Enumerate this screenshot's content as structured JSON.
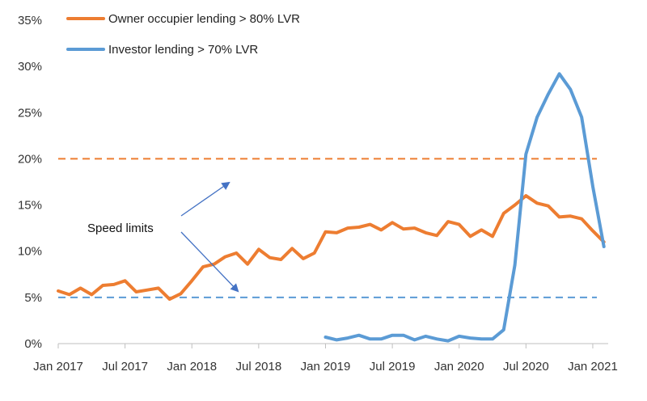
{
  "chart_data": {
    "type": "line",
    "ylim": [
      0,
      35
    ],
    "y_ticks": [
      "0%",
      "5%",
      "10%",
      "15%",
      "20%",
      "25%",
      "30%",
      "35%"
    ],
    "y_tick_values": [
      0,
      5,
      10,
      15,
      20,
      25,
      30,
      35
    ],
    "x_ticks": [
      "Jan 2017",
      "Jul 2017",
      "Jan 2018",
      "Jul 2018",
      "Jan 2019",
      "Jul 2019",
      "Jan 2020",
      "Jul 2020",
      "Jan 2021"
    ],
    "x_tick_values": [
      "2017-01",
      "2017-07",
      "2018-01",
      "2018-07",
      "2019-01",
      "2019-07",
      "2020-01",
      "2020-07",
      "2021-01"
    ],
    "xlim": [
      "2017-01",
      "2021-02"
    ],
    "grid": false,
    "legend_position": "top-left",
    "series": [
      {
        "name": "Owner occupier lending > 80% LVR",
        "color": "#ED7D31",
        "x": [
          "2017-01",
          "2017-02",
          "2017-03",
          "2017-04",
          "2017-05",
          "2017-06",
          "2017-07",
          "2017-08",
          "2017-09",
          "2017-10",
          "2017-11",
          "2017-12",
          "2018-01",
          "2018-02",
          "2018-03",
          "2018-04",
          "2018-05",
          "2018-06",
          "2018-07",
          "2018-08",
          "2018-09",
          "2018-10",
          "2018-11",
          "2018-12",
          "2019-01",
          "2019-02",
          "2019-03",
          "2019-04",
          "2019-05",
          "2019-06",
          "2019-07",
          "2019-08",
          "2019-09",
          "2019-10",
          "2019-11",
          "2019-12",
          "2020-01",
          "2020-02",
          "2020-03",
          "2020-04",
          "2020-05",
          "2020-06",
          "2020-07",
          "2020-08",
          "2020-09",
          "2020-10",
          "2020-11",
          "2020-12",
          "2021-01",
          "2021-02"
        ],
        "values": [
          5.7,
          5.3,
          6.0,
          5.3,
          6.3,
          6.4,
          6.8,
          5.6,
          5.8,
          6.0,
          4.8,
          5.4,
          6.8,
          8.3,
          8.6,
          9.4,
          9.8,
          8.6,
          10.2,
          9.3,
          9.1,
          10.3,
          9.2,
          9.8,
          12.1,
          12.0,
          12.5,
          12.6,
          12.9,
          12.3,
          13.1,
          12.4,
          12.5,
          12.0,
          11.7,
          13.2,
          12.9,
          11.6,
          12.3,
          11.6,
          14.1,
          15.0,
          16.0,
          15.2,
          14.9,
          13.7,
          13.8,
          13.5,
          12.2,
          11.0
        ]
      },
      {
        "name": "Investor lending > 70% LVR",
        "color": "#5B9BD5",
        "x": [
          "2019-01",
          "2019-02",
          "2019-03",
          "2019-04",
          "2019-05",
          "2019-06",
          "2019-07",
          "2019-08",
          "2019-09",
          "2019-10",
          "2019-11",
          "2019-12",
          "2020-01",
          "2020-02",
          "2020-03",
          "2020-04",
          "2020-05",
          "2020-06",
          "2020-07",
          "2020-08",
          "2020-09",
          "2020-10",
          "2020-11",
          "2020-12",
          "2021-01",
          "2021-02"
        ],
        "values": [
          0.7,
          0.4,
          0.6,
          0.9,
          0.5,
          0.5,
          0.9,
          0.9,
          0.4,
          0.8,
          0.5,
          0.3,
          0.8,
          0.6,
          0.5,
          0.5,
          1.5,
          8.5,
          20.5,
          24.5,
          27.0,
          29.2,
          27.5,
          24.5,
          17.0,
          10.5
        ]
      }
    ],
    "reference_lines": [
      {
        "series": "Owner occupier lending > 80% LVR",
        "value": 20,
        "color": "#ED7D31"
      },
      {
        "series": "Investor lending > 70% LVR",
        "value": 5,
        "color": "#5B9BD5"
      }
    ],
    "annotation": {
      "text": "Speed limits",
      "arrow_color": "#4472C4"
    }
  }
}
